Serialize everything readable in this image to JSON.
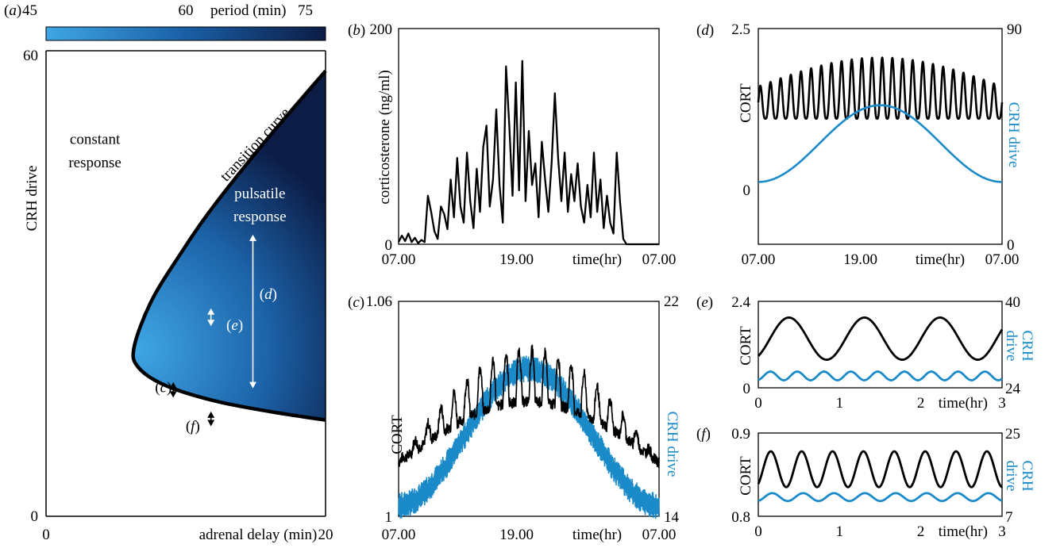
{
  "colors": {
    "black": "#000000",
    "blue": "#1a8ac9",
    "arrow_white": "#ffffff"
  },
  "chart_data": [
    {
      "panel": "(a)",
      "type": "heatmap",
      "xlabel": "adrenal delay (min)",
      "ylabel": "CRH drive",
      "xlim": [
        0,
        20
      ],
      "ylim": [
        0,
        60
      ],
      "xticks": [
        "0",
        "20"
      ],
      "yticks": [
        "0",
        "60"
      ],
      "colorbar": {
        "label": "period (min)",
        "ticks": [
          "45",
          "60",
          "75"
        ],
        "range": [
          45,
          75
        ],
        "colors": [
          "#3fa6e4",
          "#0c1c45"
        ]
      },
      "transition_curve": {
        "x": [
          20,
          16,
          12,
          9.5,
          7.5,
          6.3,
          6.6,
          8.5,
          12,
          16,
          20
        ],
        "y": [
          57.4,
          49,
          40,
          33.5,
          27.6,
          21.8,
          19.2,
          16.9,
          14.9,
          13.5,
          12.4
        ]
      },
      "annotations": [
        {
          "text": "constant",
          "x": 3.5,
          "y": 48
        },
        {
          "text": "response",
          "x": 3.5,
          "y": 45
        },
        {
          "text": "transition curve",
          "x": 15.2,
          "y": 47.5,
          "angle": -47
        },
        {
          "text": "pulsatile",
          "x": 15.3,
          "y": 41
        },
        {
          "text": "response",
          "x": 15.3,
          "y": 38
        },
        {
          "text": "(d)",
          "x": 15.9,
          "y": 28
        },
        {
          "text": "(e)",
          "x": 13.5,
          "y": 24
        },
        {
          "text": "(c)",
          "x": 8.4,
          "y": 16
        },
        {
          "text": "(f)",
          "x": 10.5,
          "y": 11
        }
      ],
      "arrows": [
        {
          "label": "(d)",
          "x": 14.8,
          "y_range": [
            16.5,
            36.3
          ]
        },
        {
          "label": "(e)",
          "x": 11.8,
          "y_range": [
            24.5,
            26.8
          ]
        },
        {
          "label": "(c)",
          "x": 9.1,
          "y_range": [
            15.3,
            17.3
          ]
        },
        {
          "label": "(f)",
          "x": 11.8,
          "y_range": [
            11.6,
            13.5
          ]
        }
      ]
    },
    {
      "panel": "(b)",
      "type": "line",
      "ylabel": "corticosterone (ng/ml)",
      "xlabel": "time(hr)",
      "ylim": [
        0,
        200
      ],
      "xlim": [
        0,
        24
      ],
      "xticks": [
        "07.00",
        "19.00",
        "07.00"
      ],
      "yticks": [
        "0",
        "200"
      ],
      "series": [
        {
          "x": [
            0,
            0.3,
            0.6,
            0.9,
            1.2,
            1.5,
            1.8,
            2.1,
            2.4,
            2.7,
            3.0,
            3.3,
            3.6,
            3.9,
            4.2,
            4.5,
            4.8,
            5.1,
            5.4,
            5.7,
            6.0,
            6.3,
            6.6,
            6.9,
            7.2,
            7.5,
            7.8,
            8.1,
            8.4,
            8.7,
            9.0,
            9.3,
            9.6,
            9.9,
            10.2,
            10.5,
            10.8,
            11.1,
            11.4,
            11.7,
            12.0,
            12.3,
            12.6,
            12.9,
            13.2,
            13.5,
            13.8,
            14.1,
            14.4,
            14.7,
            15.0,
            15.3,
            15.6,
            15.9,
            16.2,
            16.5,
            16.8,
            17.1,
            17.4,
            17.7,
            18.0,
            18.3,
            18.6,
            18.9,
            19.2,
            19.5,
            19.8,
            20.1,
            20.4,
            20.7,
            21.0,
            21.3,
            21.6,
            21.9,
            22.2,
            22.5,
            22.8,
            23.1,
            23.4,
            23.7,
            24.0
          ],
          "values": [
            2,
            8,
            3,
            10,
            2,
            6,
            1,
            4,
            2,
            45,
            30,
            12,
            5,
            35,
            28,
            14,
            60,
            25,
            80,
            35,
            20,
            85,
            40,
            15,
            70,
            30,
            90,
            110,
            35,
            60,
            125,
            55,
            20,
            165,
            110,
            45,
            150,
            50,
            170,
            40,
            105,
            55,
            75,
            25,
            95,
            60,
            30,
            75,
            140,
            80,
            40,
            85,
            30,
            65,
            40,
            75,
            35,
            20,
            55,
            25,
            85,
            30,
            60,
            15,
            45,
            20,
            10,
            85,
            40,
            5,
            0,
            0,
            0,
            0,
            0,
            0,
            0,
            0,
            0,
            0,
            0
          ]
        }
      ]
    },
    {
      "panel": "(c)",
      "type": "line",
      "ylabel": "CORT",
      "ylabel_right": "CRH drive",
      "xlabel": "time(hr)",
      "ylim": [
        1,
        1.06
      ],
      "ylim_right": [
        14,
        22
      ],
      "xticks": [
        "07.00",
        "19.00",
        "07.00"
      ],
      "yticks": [
        "1",
        "1.06"
      ],
      "yticks_right": [
        "14",
        "22"
      ],
      "series": [
        {
          "name": "CORT",
          "axis": "left",
          "baseline": 1.015,
          "amplitude": 0.012,
          "swing": 0.017,
          "cycles": 20,
          "noise": 0.003
        },
        {
          "name": "CRH drive",
          "axis": "right",
          "baseline": 14.4,
          "amplitude": 6.8,
          "cycles": 1
        }
      ]
    },
    {
      "panel": "(d)",
      "type": "line",
      "ylabel": "CORT",
      "ylabel_right": "CRH drive",
      "xlabel": "time(hr)",
      "ylim": [
        -0.85,
        2.5
      ],
      "ylim_right": [
        0,
        90
      ],
      "xticks": [
        "07.00",
        "19.00",
        "07.00"
      ],
      "yticks": [
        "0",
        "2.5"
      ],
      "yticks_right": [
        "0",
        "90"
      ],
      "series": [
        {
          "name": "CORT",
          "axis": "left",
          "trough": 1.1,
          "peak_edge": 1.6,
          "peak_mid": 2.05,
          "cycles": 24
        },
        {
          "name": "CRH drive",
          "axis": "right",
          "min": 26,
          "max": 58,
          "cycles": 1
        }
      ]
    },
    {
      "panel": "(e)",
      "type": "line",
      "ylabel": "CORT",
      "ylabel_right": "CRH drive",
      "xlabel": "time(hr)",
      "xlim": [
        0,
        3
      ],
      "ylim": [
        0,
        2.4
      ],
      "ylim_right": [
        24,
        40
      ],
      "xticks": [
        "0",
        "1",
        "2",
        "3"
      ],
      "yticks": [
        "0",
        "2.4"
      ],
      "yticks_right": [
        "24",
        "40"
      ],
      "series": [
        {
          "name": "CORT",
          "axis": "left",
          "min": 0.78,
          "max": 1.95,
          "period_hr": 0.93
        },
        {
          "name": "CRH drive",
          "axis": "right",
          "min": 25.4,
          "max": 27.0,
          "period_hr": 0.33
        }
      ]
    },
    {
      "panel": "(f)",
      "type": "line",
      "ylabel": "CORT",
      "ylabel_right": "CRH drive",
      "xlabel": "time(hr)",
      "xlim": [
        0,
        3
      ],
      "ylim": [
        0.8,
        0.9
      ],
      "ylim_right": [
        7,
        25
      ],
      "xticks": [
        "0",
        "1",
        "2",
        "3"
      ],
      "yticks": [
        "0.8",
        "0.9"
      ],
      "yticks_right": [
        "7",
        "25"
      ],
      "series": [
        {
          "name": "CORT",
          "axis": "left",
          "min": 0.835,
          "max": 0.878,
          "period_hr": 0.38
        },
        {
          "name": "CRH drive",
          "axis": "right",
          "min": 10.3,
          "max": 12.0,
          "period_hr": 0.38
        }
      ]
    }
  ]
}
